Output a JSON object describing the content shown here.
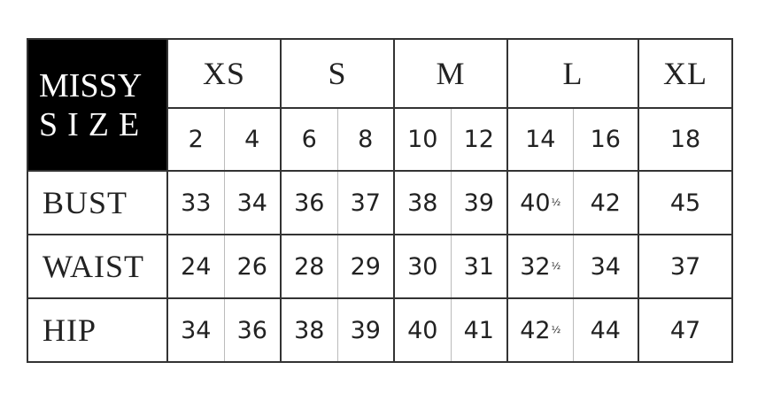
{
  "corner": {
    "line1": "MISSY",
    "line2": "SIZE"
  },
  "size_groups": [
    "XS",
    "S",
    "M",
    "L",
    "XL"
  ],
  "sizes": [
    "2",
    "4",
    "6",
    "8",
    "10",
    "12",
    "14",
    "16",
    "18"
  ],
  "rows": [
    {
      "label": "BUST",
      "values": [
        "33",
        "34",
        "36",
        "37",
        "38",
        "39",
        "40½",
        "42",
        "45"
      ]
    },
    {
      "label": "WAIST",
      "values": [
        "24",
        "26",
        "28",
        "29",
        "30",
        "31",
        "32½",
        "34",
        "37"
      ]
    },
    {
      "label": "HIP",
      "values": [
        "34",
        "36",
        "38",
        "39",
        "40",
        "41",
        "42½",
        "44",
        "47"
      ]
    }
  ]
}
